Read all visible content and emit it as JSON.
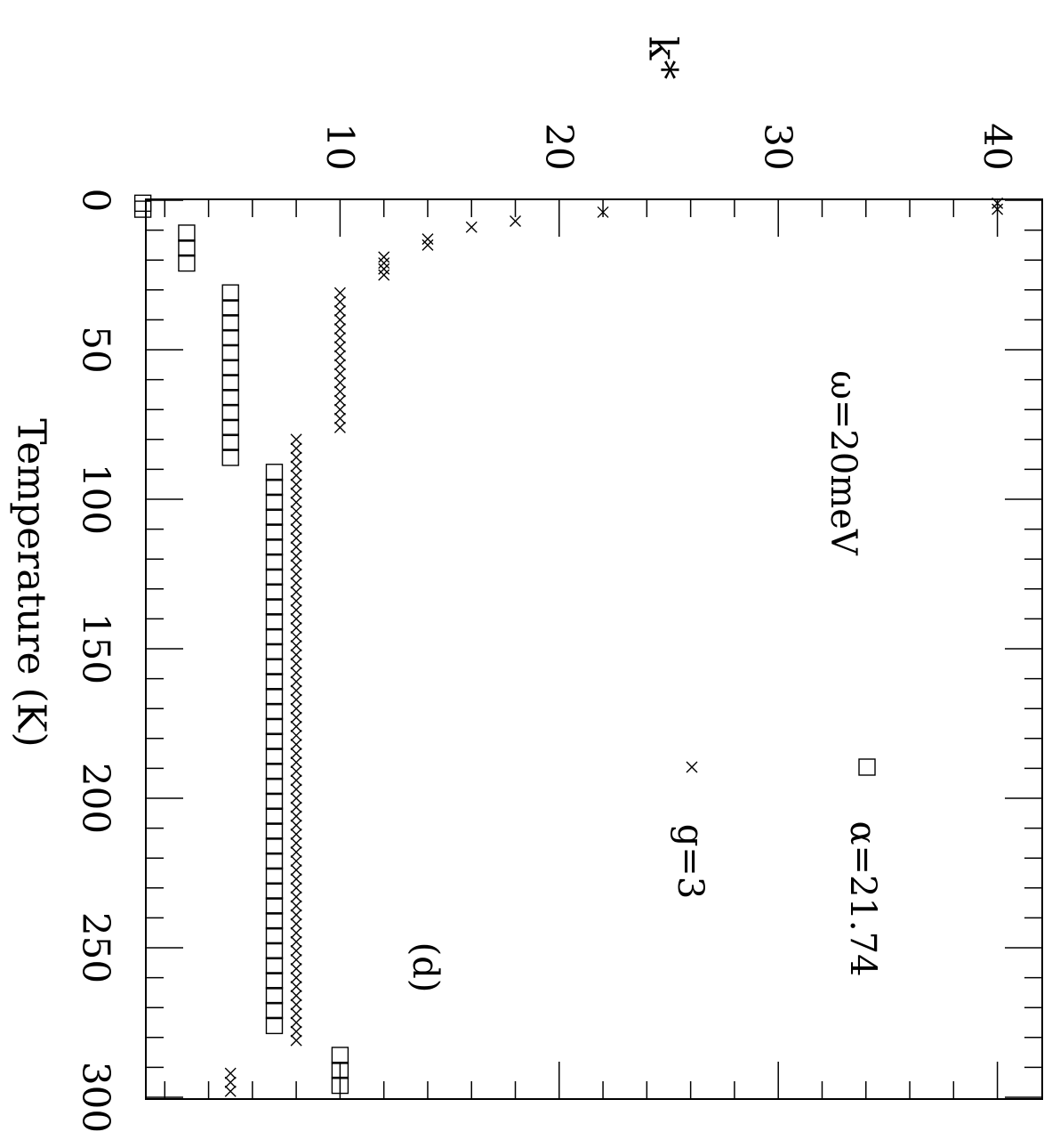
{
  "chart_data": {
    "type": "scatter",
    "orientation": "rotated-90-clockwise",
    "xlabel": "Temperature (K)",
    "ylabel": "k*",
    "xlim": [
      0,
      300
    ],
    "ylim": [
      0,
      41
    ],
    "x_ticks": [
      "0",
      "50",
      "100",
      "150",
      "200",
      "250",
      "300"
    ],
    "y_ticks": [
      "10",
      "20",
      "30",
      "40"
    ],
    "annotations": {
      "omega": "ω=20meV",
      "panel": "(d)"
    },
    "legend": [
      {
        "marker": "square",
        "label": "α=21.74"
      },
      {
        "marker": "cross",
        "label": "g=3"
      }
    ],
    "series": [
      {
        "marker": "square",
        "points": [
          [
            1,
            1
          ],
          [
            3,
            1
          ],
          [
            11,
            3
          ],
          [
            16,
            3
          ],
          [
            21,
            3
          ],
          [
            31,
            5
          ],
          [
            36,
            5
          ],
          [
            41,
            5
          ],
          [
            46,
            5
          ],
          [
            51,
            5
          ],
          [
            56,
            5
          ],
          [
            61,
            5
          ],
          [
            66,
            5
          ],
          [
            71,
            5
          ],
          [
            76,
            5
          ],
          [
            81,
            5
          ],
          [
            86,
            5
          ],
          [
            91,
            7
          ],
          [
            96,
            7
          ],
          [
            101,
            7
          ],
          [
            106,
            7
          ],
          [
            111,
            7
          ],
          [
            116,
            7
          ],
          [
            121,
            7
          ],
          [
            126,
            7
          ],
          [
            131,
            7
          ],
          [
            136,
            7
          ],
          [
            141,
            7
          ],
          [
            146,
            7
          ],
          [
            151,
            7
          ],
          [
            156,
            7
          ],
          [
            161,
            7
          ],
          [
            166,
            7
          ],
          [
            171,
            7
          ],
          [
            176,
            7
          ],
          [
            181,
            7
          ],
          [
            186,
            7
          ],
          [
            191,
            7
          ],
          [
            196,
            7
          ],
          [
            201,
            7
          ],
          [
            206,
            7
          ],
          [
            211,
            7
          ],
          [
            216,
            7
          ],
          [
            221,
            7
          ],
          [
            226,
            7
          ],
          [
            231,
            7
          ],
          [
            236,
            7
          ],
          [
            241,
            7
          ],
          [
            246,
            7
          ],
          [
            251,
            7
          ],
          [
            256,
            7
          ],
          [
            261,
            7
          ],
          [
            266,
            7
          ],
          [
            271,
            7
          ],
          [
            276,
            7
          ],
          [
            286,
            10
          ],
          [
            291,
            10
          ],
          [
            296,
            10
          ]
        ]
      },
      {
        "marker": "cross",
        "points": [
          [
            1,
            40
          ],
          [
            3,
            40
          ],
          [
            4,
            22
          ],
          [
            7,
            18
          ],
          [
            9,
            16
          ],
          [
            13,
            14
          ],
          [
            15,
            14
          ],
          [
            19,
            12
          ],
          [
            21,
            12
          ],
          [
            23,
            12
          ],
          [
            25,
            12
          ],
          [
            31,
            10
          ],
          [
            34,
            10
          ],
          [
            37,
            10
          ],
          [
            40,
            10
          ],
          [
            43,
            10
          ],
          [
            46,
            10
          ],
          [
            49,
            10
          ],
          [
            52,
            10
          ],
          [
            55,
            10
          ],
          [
            58,
            10
          ],
          [
            61,
            10
          ],
          [
            64,
            10
          ],
          [
            67,
            10
          ],
          [
            70,
            10
          ],
          [
            73,
            10
          ],
          [
            76,
            10
          ],
          [
            80,
            8
          ],
          [
            83,
            8
          ],
          [
            86,
            8
          ],
          [
            89,
            8
          ],
          [
            92,
            8
          ],
          [
            95,
            8
          ],
          [
            98,
            8
          ],
          [
            101,
            8
          ],
          [
            104,
            8
          ],
          [
            107,
            8
          ],
          [
            110,
            8
          ],
          [
            113,
            8
          ],
          [
            116,
            8
          ],
          [
            119,
            8
          ],
          [
            122,
            8
          ],
          [
            125,
            8
          ],
          [
            128,
            8
          ],
          [
            131,
            8
          ],
          [
            134,
            8
          ],
          [
            137,
            8
          ],
          [
            140,
            8
          ],
          [
            143,
            8
          ],
          [
            146,
            8
          ],
          [
            149,
            8
          ],
          [
            152,
            8
          ],
          [
            155,
            8
          ],
          [
            158,
            8
          ],
          [
            161,
            8
          ],
          [
            164,
            8
          ],
          [
            167,
            8
          ],
          [
            170,
            8
          ],
          [
            173,
            8
          ],
          [
            176,
            8
          ],
          [
            179,
            8
          ],
          [
            182,
            8
          ],
          [
            185,
            8
          ],
          [
            188,
            8
          ],
          [
            191,
            8
          ],
          [
            194,
            8
          ],
          [
            197,
            8
          ],
          [
            200,
            8
          ],
          [
            203,
            8
          ],
          [
            206,
            8
          ],
          [
            209,
            8
          ],
          [
            212,
            8
          ],
          [
            215,
            8
          ],
          [
            218,
            8
          ],
          [
            221,
            8
          ],
          [
            224,
            8
          ],
          [
            227,
            8
          ],
          [
            230,
            8
          ],
          [
            233,
            8
          ],
          [
            236,
            8
          ],
          [
            239,
            8
          ],
          [
            242,
            8
          ],
          [
            245,
            8
          ],
          [
            248,
            8
          ],
          [
            251,
            8
          ],
          [
            254,
            8
          ],
          [
            257,
            8
          ],
          [
            260,
            8
          ],
          [
            263,
            8
          ],
          [
            266,
            8
          ],
          [
            269,
            8
          ],
          [
            272,
            8
          ],
          [
            275,
            8
          ],
          [
            278,
            8
          ],
          [
            281,
            8
          ],
          [
            292,
            5
          ],
          [
            295,
            5
          ],
          [
            298,
            5
          ]
        ]
      }
    ]
  }
}
